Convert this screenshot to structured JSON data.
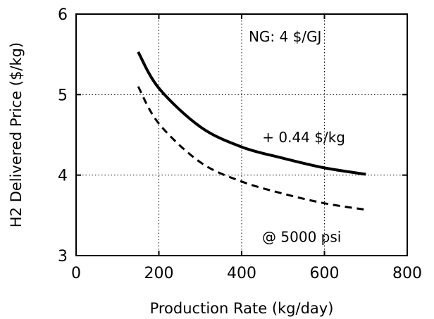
{
  "chart_data": {
    "type": "line",
    "xlabel": "Production Rate (kg/day)",
    "ylabel": "H2 Delivered Price ($/kg)",
    "xlim": [
      0,
      800
    ],
    "ylim": [
      3,
      6
    ],
    "xticks": [
      0,
      200,
      400,
      600,
      800
    ],
    "yticks": [
      3,
      4,
      5,
      6
    ],
    "xtick_labels": [
      "0",
      "200",
      "400",
      "600",
      "800"
    ],
    "ytick_labels": [
      "3",
      "4",
      "5",
      "6"
    ],
    "grid": true,
    "series": [
      {
        "style": "solid",
        "color": "#000000",
        "x": [
          150,
          200,
          300,
          400,
          500,
          600,
          700
        ],
        "y": [
          5.53,
          5.08,
          4.6,
          4.35,
          4.21,
          4.09,
          4.01
        ]
      },
      {
        "style": "dashed",
        "color": "#000000",
        "x": [
          150,
          200,
          300,
          400,
          500,
          600,
          700
        ],
        "y": [
          5.1,
          4.64,
          4.16,
          3.92,
          3.77,
          3.65,
          3.57
        ]
      }
    ],
    "annotations": [
      {
        "text": "NG: 4 $/GJ",
        "x": 505,
        "y": 5.66
      },
      {
        "text": "+ 0.44 $/kg",
        "x": 550,
        "y": 4.41
      },
      {
        "text": "@ 5000 psi",
        "x": 545,
        "y": 3.17
      }
    ]
  }
}
